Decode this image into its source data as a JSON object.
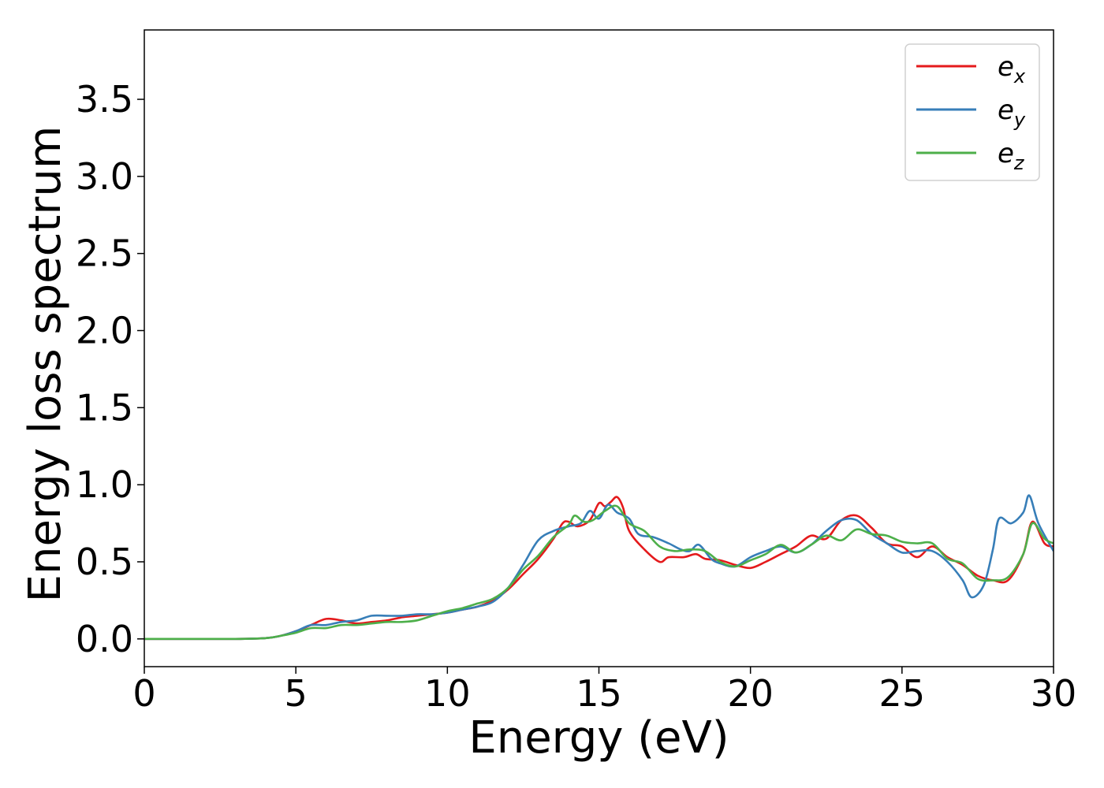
{
  "chart_data": {
    "type": "line",
    "xlabel": "Energy (eV)",
    "ylabel": "Energy loss spectrum",
    "xlim": [
      0,
      30
    ],
    "ylim": [
      -0.18,
      3.95
    ],
    "xticks": [
      0,
      5,
      10,
      15,
      20,
      25,
      30
    ],
    "xtick_labels": [
      "0",
      "5",
      "10",
      "15",
      "20",
      "25",
      "30"
    ],
    "yticks": [
      0.0,
      0.5,
      1.0,
      1.5,
      2.0,
      2.5,
      3.0,
      3.5
    ],
    "ytick_labels": [
      "0.0",
      "0.5",
      "1.0",
      "1.5",
      "2.0",
      "2.5",
      "3.0",
      "3.5"
    ],
    "grid": false,
    "legend_position": "top-right",
    "series": [
      {
        "name": "e",
        "subscript": "x",
        "color": "#e41a1c",
        "points": [
          [
            0,
            0
          ],
          [
            3,
            0
          ],
          [
            4,
            0.005
          ],
          [
            4.5,
            0.02
          ],
          [
            5,
            0.05
          ],
          [
            5.5,
            0.09
          ],
          [
            6,
            0.13
          ],
          [
            6.5,
            0.12
          ],
          [
            7,
            0.1
          ],
          [
            7.5,
            0.11
          ],
          [
            8,
            0.12
          ],
          [
            8.5,
            0.14
          ],
          [
            9,
            0.15
          ],
          [
            9.5,
            0.16
          ],
          [
            10,
            0.17
          ],
          [
            10.5,
            0.19
          ],
          [
            11,
            0.21
          ],
          [
            11.5,
            0.25
          ],
          [
            12,
            0.32
          ],
          [
            12.5,
            0.42
          ],
          [
            13,
            0.52
          ],
          [
            13.5,
            0.65
          ],
          [
            13.8,
            0.75
          ],
          [
            14,
            0.76
          ],
          [
            14.3,
            0.73
          ],
          [
            14.7,
            0.77
          ],
          [
            15,
            0.88
          ],
          [
            15.2,
            0.86
          ],
          [
            15.4,
            0.89
          ],
          [
            15.6,
            0.92
          ],
          [
            15.8,
            0.85
          ],
          [
            16,
            0.7
          ],
          [
            16.5,
            0.58
          ],
          [
            17,
            0.5
          ],
          [
            17.3,
            0.53
          ],
          [
            17.8,
            0.53
          ],
          [
            18.2,
            0.55
          ],
          [
            18.5,
            0.52
          ],
          [
            19,
            0.51
          ],
          [
            19.5,
            0.48
          ],
          [
            20,
            0.46
          ],
          [
            20.5,
            0.5
          ],
          [
            21,
            0.55
          ],
          [
            21.5,
            0.6
          ],
          [
            22,
            0.67
          ],
          [
            22.5,
            0.65
          ],
          [
            23,
            0.77
          ],
          [
            23.5,
            0.8
          ],
          [
            24,
            0.72
          ],
          [
            24.5,
            0.62
          ],
          [
            25,
            0.6
          ],
          [
            25.5,
            0.53
          ],
          [
            26,
            0.6
          ],
          [
            26.5,
            0.53
          ],
          [
            27,
            0.48
          ],
          [
            27.5,
            0.41
          ],
          [
            28,
            0.38
          ],
          [
            28.5,
            0.38
          ],
          [
            29,
            0.55
          ],
          [
            29.3,
            0.76
          ],
          [
            29.7,
            0.62
          ],
          [
            30,
            0.6
          ]
        ]
      },
      {
        "name": "e",
        "subscript": "y",
        "color": "#377eb8",
        "points": [
          [
            0,
            0
          ],
          [
            3,
            0
          ],
          [
            4,
            0.005
          ],
          [
            4.5,
            0.02
          ],
          [
            5,
            0.05
          ],
          [
            5.5,
            0.09
          ],
          [
            6,
            0.09
          ],
          [
            6.5,
            0.11
          ],
          [
            7,
            0.12
          ],
          [
            7.5,
            0.15
          ],
          [
            8,
            0.15
          ],
          [
            8.5,
            0.15
          ],
          [
            9,
            0.16
          ],
          [
            9.5,
            0.16
          ],
          [
            10,
            0.17
          ],
          [
            10.5,
            0.19
          ],
          [
            11,
            0.21
          ],
          [
            11.5,
            0.24
          ],
          [
            12,
            0.33
          ],
          [
            12.5,
            0.48
          ],
          [
            13,
            0.64
          ],
          [
            13.5,
            0.7
          ],
          [
            14,
            0.73
          ],
          [
            14.4,
            0.75
          ],
          [
            14.7,
            0.83
          ],
          [
            15,
            0.78
          ],
          [
            15.3,
            0.87
          ],
          [
            15.6,
            0.82
          ],
          [
            16,
            0.78
          ],
          [
            16.3,
            0.68
          ],
          [
            16.8,
            0.66
          ],
          [
            17.3,
            0.62
          ],
          [
            17.7,
            0.58
          ],
          [
            18,
            0.57
          ],
          [
            18.3,
            0.61
          ],
          [
            18.7,
            0.52
          ],
          [
            19,
            0.49
          ],
          [
            19.5,
            0.47
          ],
          [
            20,
            0.53
          ],
          [
            20.5,
            0.57
          ],
          [
            21,
            0.6
          ],
          [
            21.5,
            0.56
          ],
          [
            22,
            0.61
          ],
          [
            22.5,
            0.7
          ],
          [
            23,
            0.77
          ],
          [
            23.5,
            0.77
          ],
          [
            24,
            0.68
          ],
          [
            24.5,
            0.62
          ],
          [
            25,
            0.56
          ],
          [
            25.5,
            0.57
          ],
          [
            26,
            0.57
          ],
          [
            26.5,
            0.5
          ],
          [
            27,
            0.38
          ],
          [
            27.3,
            0.27
          ],
          [
            27.7,
            0.35
          ],
          [
            28,
            0.58
          ],
          [
            28.2,
            0.78
          ],
          [
            28.6,
            0.75
          ],
          [
            29,
            0.82
          ],
          [
            29.2,
            0.93
          ],
          [
            29.5,
            0.75
          ],
          [
            30,
            0.57
          ]
        ]
      },
      {
        "name": "e",
        "subscript": "z",
        "color": "#4daf4a",
        "points": [
          [
            0,
            0
          ],
          [
            3,
            0
          ],
          [
            4,
            0.005
          ],
          [
            4.5,
            0.02
          ],
          [
            5,
            0.04
          ],
          [
            5.5,
            0.07
          ],
          [
            6,
            0.07
          ],
          [
            6.5,
            0.09
          ],
          [
            7,
            0.09
          ],
          [
            7.5,
            0.1
          ],
          [
            8,
            0.11
          ],
          [
            8.5,
            0.11
          ],
          [
            9,
            0.12
          ],
          [
            9.5,
            0.15
          ],
          [
            10,
            0.18
          ],
          [
            10.5,
            0.2
          ],
          [
            11,
            0.23
          ],
          [
            11.5,
            0.26
          ],
          [
            12,
            0.33
          ],
          [
            12.5,
            0.45
          ],
          [
            13,
            0.54
          ],
          [
            13.5,
            0.66
          ],
          [
            14,
            0.74
          ],
          [
            14.2,
            0.8
          ],
          [
            14.5,
            0.76
          ],
          [
            14.8,
            0.77
          ],
          [
            15.2,
            0.83
          ],
          [
            15.6,
            0.86
          ],
          [
            16,
            0.75
          ],
          [
            16.5,
            0.7
          ],
          [
            17,
            0.6
          ],
          [
            17.5,
            0.57
          ],
          [
            18,
            0.58
          ],
          [
            18.5,
            0.57
          ],
          [
            19,
            0.5
          ],
          [
            19.5,
            0.47
          ],
          [
            20,
            0.51
          ],
          [
            20.5,
            0.55
          ],
          [
            21,
            0.61
          ],
          [
            21.5,
            0.56
          ],
          [
            22,
            0.61
          ],
          [
            22.5,
            0.67
          ],
          [
            23,
            0.64
          ],
          [
            23.5,
            0.71
          ],
          [
            24,
            0.68
          ],
          [
            24.5,
            0.67
          ],
          [
            25,
            0.63
          ],
          [
            25.5,
            0.62
          ],
          [
            26,
            0.62
          ],
          [
            26.5,
            0.52
          ],
          [
            27,
            0.49
          ],
          [
            27.5,
            0.39
          ],
          [
            28,
            0.38
          ],
          [
            28.5,
            0.4
          ],
          [
            29,
            0.55
          ],
          [
            29.3,
            0.75
          ],
          [
            29.7,
            0.65
          ],
          [
            30,
            0.62
          ]
        ]
      }
    ]
  }
}
